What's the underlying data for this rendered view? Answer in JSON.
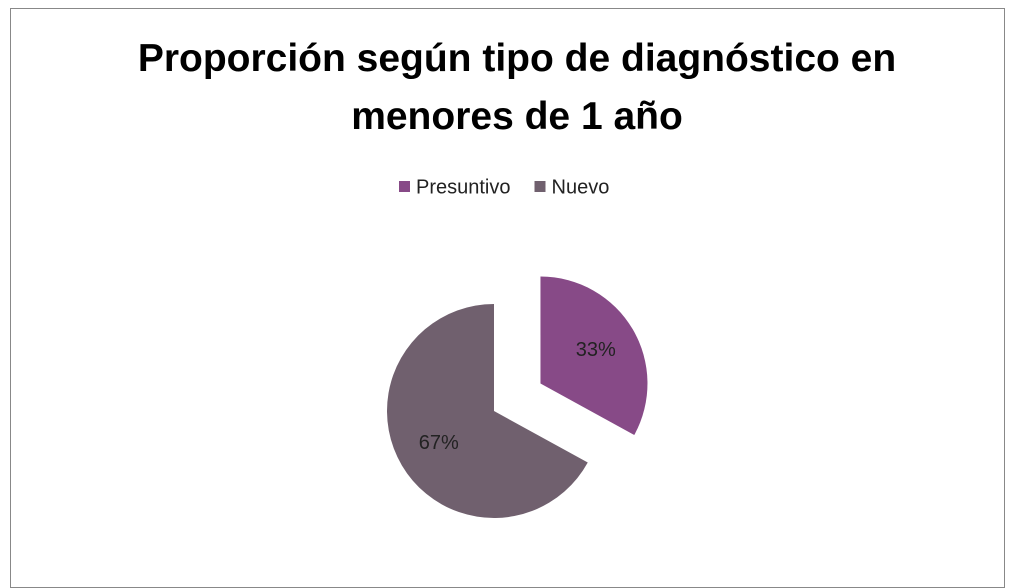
{
  "chart_data": {
    "type": "pie",
    "title": "Proporción según tipo de diagnóstico en menores de 1 año",
    "categories": [
      "Presuntivo",
      "Nuevo"
    ],
    "values": [
      33,
      67
    ],
    "value_labels": [
      "33%",
      "67%"
    ],
    "colors": [
      "#874a87",
      "#70606e"
    ],
    "explode": [
      true,
      false
    ],
    "legend": "top"
  }
}
